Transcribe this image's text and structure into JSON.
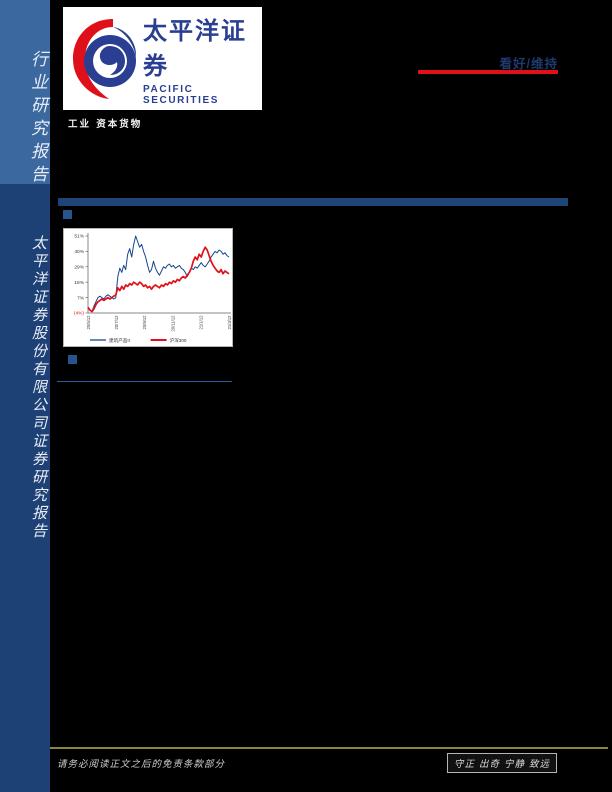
{
  "sidebar": {
    "top_label": "行业研究报告",
    "bottom_label": "太平洋证券股份有限公司证券研究报告",
    "top_bg": "#3c68a0",
    "bottom_bg": "#1d4075"
  },
  "logo": {
    "cn": "太平洋证券",
    "en": "PACIFIC SECURITIES",
    "brand_blue": "#2a3f92",
    "brand_red": "#e0101a"
  },
  "header": {
    "category": "工业 资本货物",
    "rating": "看好/维持",
    "rating_color": "#1e3a6e",
    "rating_underline_color": "#e0101a"
  },
  "chart_data": {
    "type": "line",
    "title": "",
    "xlabel": "",
    "ylabel": "",
    "grid": false,
    "legend_position": "bottom",
    "ylim": [
      -4,
      51
    ],
    "y_ticks": [
      {
        "label": "51%",
        "value": 51,
        "color": "#333333"
      },
      {
        "label": "40%",
        "value": 40,
        "color": "#333333"
      },
      {
        "label": "29%",
        "value": 29,
        "color": "#333333"
      },
      {
        "label": "18%",
        "value": 18,
        "color": "#333333"
      },
      {
        "label": "7%",
        "value": 7,
        "color": "#333333"
      },
      {
        "label": "(4%)",
        "value": -4,
        "color": "#e0101a"
      }
    ],
    "x_labels": [
      "20/5/12",
      "20/7/12",
      "20/9/12",
      "20/11/12",
      "21/1/12",
      "21/3/12"
    ],
    "series": [
      {
        "name": "建筑产品II",
        "color": "#17468a",
        "width": 1,
        "values": [
          0,
          -2,
          -3,
          1,
          4,
          7,
          8,
          7,
          6,
          8,
          9,
          8,
          7,
          6,
          7,
          22,
          28,
          25,
          30,
          27,
          38,
          42,
          36,
          45,
          51,
          47,
          43,
          45,
          40,
          36,
          30,
          25,
          27,
          33,
          28,
          25,
          23,
          26,
          29,
          28,
          30,
          31,
          29,
          30,
          28,
          29,
          30,
          28,
          27,
          25,
          22,
          25,
          28,
          27,
          29,
          28,
          30,
          32,
          30,
          29,
          31,
          33,
          36,
          38,
          40,
          39,
          41,
          40,
          38,
          39,
          37,
          36
        ]
      },
      {
        "name": "沪深300",
        "color": "#e0101a",
        "width": 1.7,
        "values": [
          0,
          -2,
          -3,
          -1,
          2,
          4,
          5,
          6,
          5,
          6,
          7,
          6,
          7,
          8,
          9,
          14,
          12,
          15,
          13,
          16,
          15,
          17,
          16,
          18,
          17,
          16,
          18,
          17,
          15,
          16,
          14,
          15,
          13,
          15,
          16,
          15,
          14,
          16,
          15,
          17,
          16,
          18,
          17,
          19,
          18,
          20,
          19,
          21,
          22,
          21,
          23,
          25,
          28,
          33,
          36,
          34,
          38,
          36,
          40,
          43,
          41,
          37,
          33,
          30,
          28,
          26,
          25,
          27,
          24,
          26,
          25,
          24
        ]
      }
    ]
  },
  "footer": {
    "disclaimer": "请务必阅读正文之后的免责条款部分",
    "motto": "守正 出奇 宁静 致远",
    "line_color": "#8a8445"
  }
}
